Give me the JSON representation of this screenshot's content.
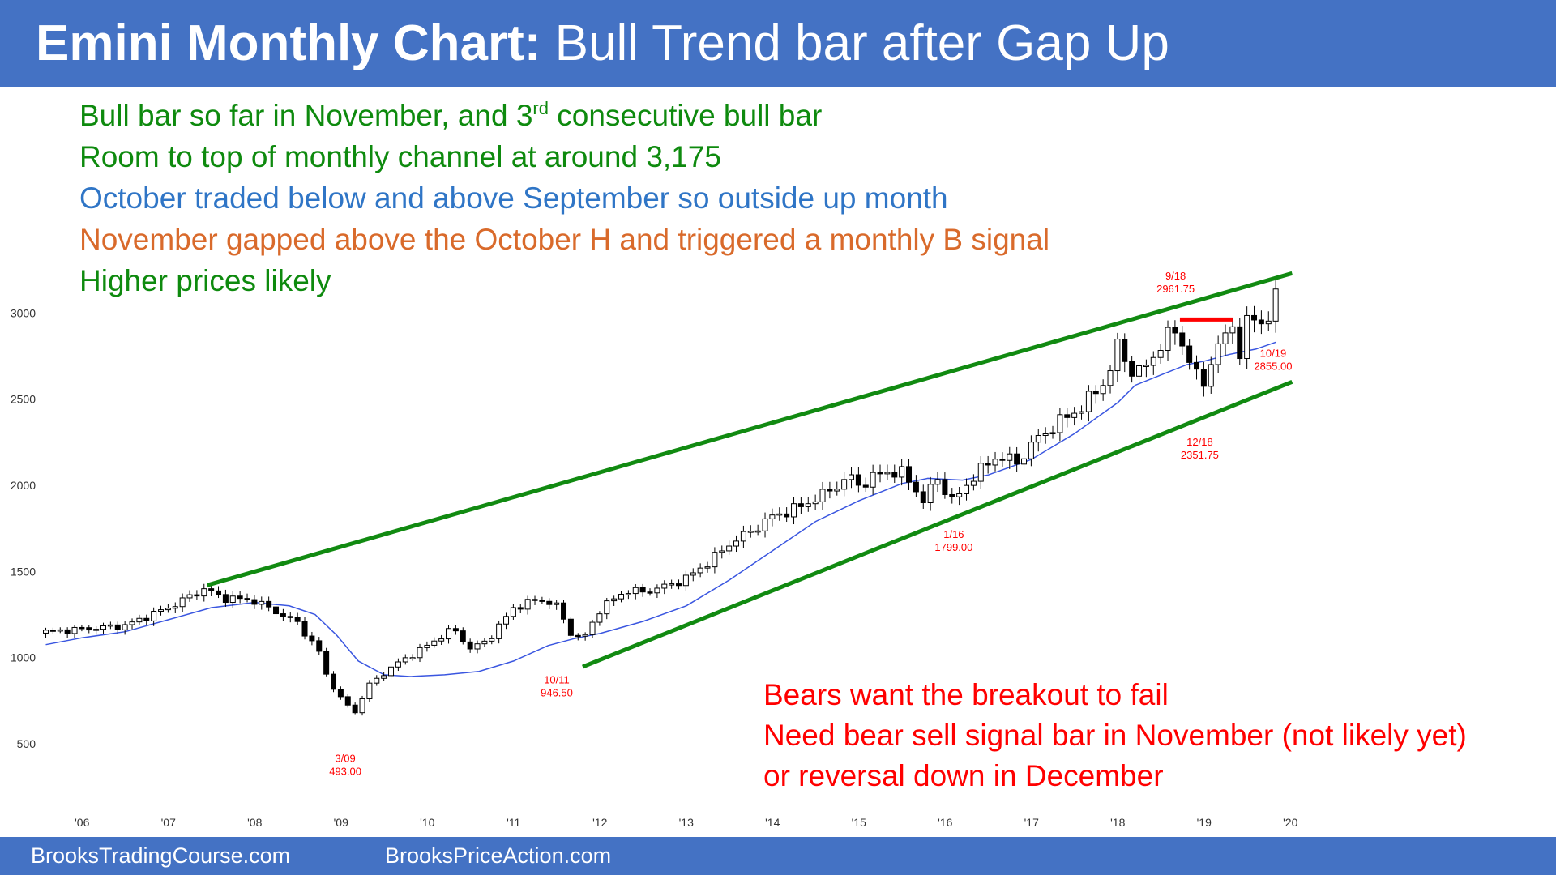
{
  "header": {
    "title_bold": "Emini Monthly Chart:",
    "title_rest": " Bull Trend bar after Gap Up",
    "background": "#4472c4"
  },
  "notes": [
    {
      "pre": "Bull bar so far in November, and 3",
      "sup": "rd",
      "post": " consecutive bull bar",
      "color": "#0e8a0e"
    },
    {
      "pre": "Room to top of monthly channel at around 3,175",
      "sup": "",
      "post": "",
      "color": "#0e8a0e"
    },
    {
      "pre": "October traded below and above September so outside up month",
      "sup": "",
      "post": "",
      "color": "#2f75c6"
    },
    {
      "pre": "November gapped above the October H and triggered a monthly B signal",
      "sup": "",
      "post": "",
      "color": "#d96a2b"
    },
    {
      "pre": "Higher prices likely",
      "sup": "",
      "post": "",
      "color": "#0e8a0e"
    }
  ],
  "bear_notes": [
    "Bears want the breakout to fail",
    "Need bear sell signal bar in November (not likely yet)",
    "or reversal down in December"
  ],
  "footer": {
    "left": "BrooksTradingCourse.com",
    "right": "BrooksPriceAction.com"
  },
  "chart_data": {
    "type": "candlestick",
    "instrument": "Emini",
    "period": "Monthly",
    "x_ticks": [
      "'06",
      "'07",
      "'08",
      "'09",
      "'10",
      "'11",
      "'12",
      "'13",
      "'14",
      "'15",
      "'16",
      "'17",
      "'18",
      "'19",
      "'20"
    ],
    "y_ticks": [
      500,
      1000,
      1500,
      2000,
      2500,
      3000
    ],
    "ylim": [
      250,
      3300
    ],
    "xlim": [
      2005.5,
      2020.1
    ],
    "grid": false,
    "colors": {
      "bull_body": "#ffffff",
      "bear_body": "#000000",
      "ma_line": "#3a56e0",
      "channel": "#118a11",
      "resistance": "#ff0000",
      "annotation": "#ff0000"
    },
    "moving_average": [
      [
        2005.58,
        1075
      ],
      [
        2006.0,
        1115
      ],
      [
        2006.5,
        1150
      ],
      [
        2007.0,
        1220
      ],
      [
        2007.5,
        1290
      ],
      [
        2008.0,
        1320
      ],
      [
        2008.4,
        1300
      ],
      [
        2008.7,
        1250
      ],
      [
        2008.95,
        1130
      ],
      [
        2009.2,
        980
      ],
      [
        2009.5,
        900
      ],
      [
        2009.8,
        890
      ],
      [
        2010.2,
        900
      ],
      [
        2010.6,
        920
      ],
      [
        2011.0,
        980
      ],
      [
        2011.4,
        1070
      ],
      [
        2011.7,
        1110
      ],
      [
        2012.0,
        1140
      ],
      [
        2012.5,
        1210
      ],
      [
        2013.0,
        1300
      ],
      [
        2013.5,
        1450
      ],
      [
        2014.0,
        1620
      ],
      [
        2014.5,
        1790
      ],
      [
        2015.0,
        1910
      ],
      [
        2015.5,
        2010
      ],
      [
        2015.8,
        2040
      ],
      [
        2016.2,
        2030
      ],
      [
        2016.5,
        2060
      ],
      [
        2017.0,
        2150
      ],
      [
        2017.5,
        2300
      ],
      [
        2018.0,
        2480
      ],
      [
        2018.2,
        2580
      ],
      [
        2018.5,
        2640
      ],
      [
        2018.8,
        2700
      ],
      [
        2019.0,
        2720
      ],
      [
        2019.3,
        2760
      ],
      [
        2019.6,
        2790
      ],
      [
        2019.83,
        2830
      ]
    ],
    "channel_lines": [
      {
        "name": "upper",
        "from": [
          2007.45,
          1420
        ],
        "to": [
          2020.02,
          3230
        ]
      },
      {
        "name": "lower",
        "from": [
          2011.8,
          946.5
        ],
        "to": [
          2020.02,
          2600
        ]
      }
    ],
    "resistance_line": {
      "from": [
        2018.72,
        2962
      ],
      "to": [
        2019.33,
        2962
      ]
    },
    "annotations": [
      {
        "date": "9/18",
        "value": "2961.75",
        "x": 2018.67,
        "y": 3195
      },
      {
        "date": "10/19",
        "value": "2855.00",
        "x": 2019.8,
        "y": 2745
      },
      {
        "date": "12/18",
        "value": "2351.75",
        "x": 2018.95,
        "y": 2230
      },
      {
        "date": "1/16",
        "value": "1799.00",
        "x": 2016.1,
        "y": 1695
      },
      {
        "date": "10/11",
        "value": "946.50",
        "x": 2011.5,
        "y": 850
      },
      {
        "date": "3/09",
        "value": "493.00",
        "x": 2009.05,
        "y": 395
      }
    ],
    "closes": [
      [
        2005.58,
        1150
      ],
      [
        2006.5,
        1185
      ],
      [
        2007.0,
        1290
      ],
      [
        2007.42,
        1400
      ],
      [
        2007.6,
        1350
      ],
      [
        2008.0,
        1330
      ],
      [
        2008.5,
        1200
      ],
      [
        2008.75,
        1030
      ],
      [
        2008.83,
        900
      ],
      [
        2009.0,
        760
      ],
      [
        2009.17,
        680
      ],
      [
        2009.3,
        830
      ],
      [
        2009.6,
        950
      ],
      [
        2010.0,
        1070
      ],
      [
        2010.3,
        1170
      ],
      [
        2010.5,
        1050
      ],
      [
        2010.7,
        1100
      ],
      [
        2011.0,
        1290
      ],
      [
        2011.3,
        1340
      ],
      [
        2011.5,
        1300
      ],
      [
        2011.65,
        1150
      ],
      [
        2011.8,
        1100
      ],
      [
        2012.0,
        1280
      ],
      [
        2012.3,
        1390
      ],
      [
        2012.5,
        1380
      ],
      [
        2012.8,
        1420
      ],
      [
        2013.0,
        1460
      ],
      [
        2013.3,
        1570
      ],
      [
        2013.5,
        1660
      ],
      [
        2013.8,
        1750
      ],
      [
        2014.0,
        1820
      ],
      [
        2014.3,
        1870
      ],
      [
        2014.6,
        1950
      ],
      [
        2014.9,
        2050
      ],
      [
        2015.0,
        2000
      ],
      [
        2015.3,
        2080
      ],
      [
        2015.5,
        2070
      ],
      [
        2015.66,
        1980
      ],
      [
        2015.75,
        1900
      ],
      [
        2015.9,
        2050
      ],
      [
        2016.05,
        1930
      ],
      [
        2016.1,
        1900
      ],
      [
        2016.3,
        2040
      ],
      [
        2016.6,
        2170
      ],
      [
        2016.85,
        2130
      ],
      [
        2017.0,
        2240
      ],
      [
        2017.3,
        2360
      ],
      [
        2017.6,
        2460
      ],
      [
        2017.9,
        2640
      ],
      [
        2018.0,
        2820
      ],
      [
        2018.1,
        2710
      ],
      [
        2018.2,
        2640
      ],
      [
        2018.35,
        2700
      ],
      [
        2018.5,
        2820
      ],
      [
        2018.7,
        2920
      ],
      [
        2018.8,
        2710
      ],
      [
        2018.88,
        2750
      ],
      [
        2018.95,
        2500
      ],
      [
        2019.05,
        2700
      ],
      [
        2019.2,
        2830
      ],
      [
        2019.35,
        2950
      ],
      [
        2019.42,
        2750
      ],
      [
        2019.5,
        2940
      ],
      [
        2019.6,
        2980
      ],
      [
        2019.7,
        2930
      ],
      [
        2019.75,
        2980
      ],
      [
        2019.8,
        3040
      ],
      [
        2019.86,
        3120
      ]
    ]
  }
}
